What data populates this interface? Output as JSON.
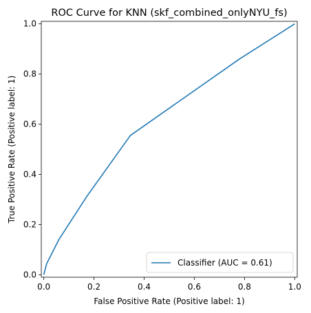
{
  "chart_data": {
    "type": "line",
    "title": "ROC Curve for KNN (skf_combined_onlyNYU_fs)",
    "xlabel": "False Positive Rate (Positive label: 1)",
    "ylabel": "True Positive Rate (Positive label: 1)",
    "xlim": [
      -0.01,
      1.01
    ],
    "ylim": [
      -0.01,
      1.01
    ],
    "xticks": [
      "0.0",
      "0.2",
      "0.4",
      "0.6",
      "0.8",
      "1.0"
    ],
    "yticks": [
      "0.0",
      "0.2",
      "0.4",
      "0.6",
      "0.8",
      "1.0"
    ],
    "grid": false,
    "legend_position": "bottom-right",
    "series": [
      {
        "name": "Classifier (AUC = 0.61)",
        "color": "#1f77b4",
        "x": [
          0.0,
          0.005,
          0.012,
          0.06,
          0.17,
          0.345,
          0.78,
          1.0
        ],
        "y": [
          0.0,
          0.02,
          0.045,
          0.14,
          0.31,
          0.555,
          0.86,
          1.0
        ]
      }
    ]
  }
}
